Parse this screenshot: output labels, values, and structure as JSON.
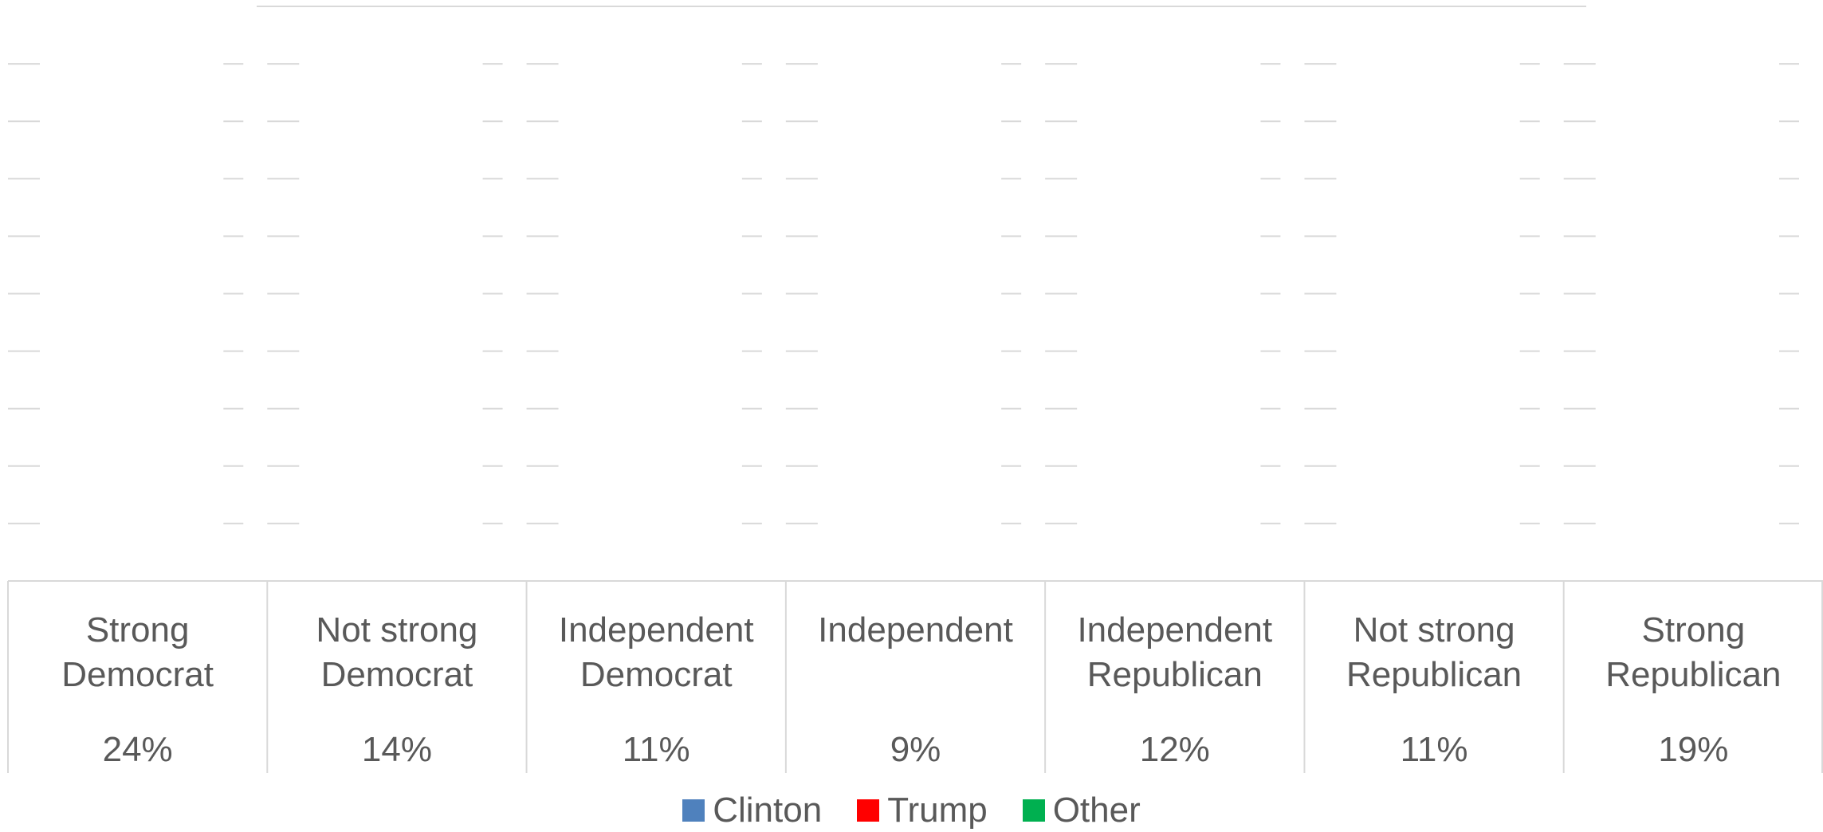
{
  "chart_data": {
    "type": "bar",
    "categories": [
      [
        "Strong",
        "Democrat"
      ],
      [
        "Not strong",
        "Democrat"
      ],
      [
        "Independent",
        "Democrat"
      ],
      [
        "Independent"
      ],
      [
        "Independent",
        "Republican"
      ],
      [
        "Not strong",
        "Republican"
      ],
      [
        "Strong",
        "Republican"
      ]
    ],
    "shares": [
      "24%",
      "14%",
      "11%",
      "9%",
      "12%",
      "11%",
      "19%"
    ],
    "series": [
      {
        "name": "Clinton",
        "color": "#4f81bd"
      },
      {
        "name": "Trump",
        "color": "#ff0000"
      },
      {
        "name": "Other",
        "color": "#00b050"
      }
    ],
    "grid": true,
    "legend_position": "bottom"
  }
}
